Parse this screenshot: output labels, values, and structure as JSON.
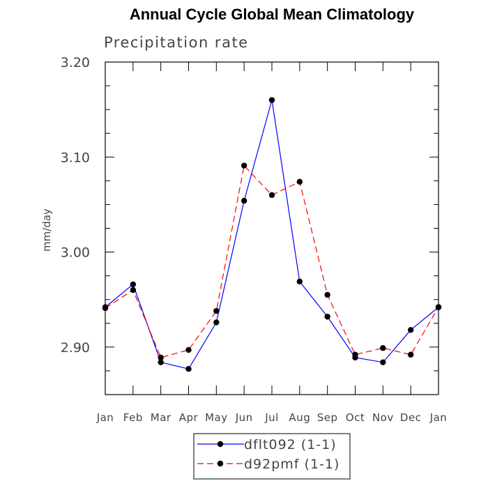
{
  "chart_data": {
    "type": "line",
    "title": "Annual Cycle Global Mean Climatology",
    "subtitle": "Precipitation rate",
    "ylabel": "mm/day",
    "xlabel": "",
    "ylim": [
      2.85,
      3.2
    ],
    "y_ticks": [
      2.9,
      3.0,
      3.1,
      3.2
    ],
    "y_tick_labels": [
      "2.90",
      "3.00",
      "3.10",
      "3.20"
    ],
    "categories": [
      "Jan",
      "Feb",
      "Mar",
      "Apr",
      "May",
      "Jun",
      "Jul",
      "Aug",
      "Sep",
      "Oct",
      "Nov",
      "Dec",
      "Jan"
    ],
    "series": [
      {
        "name": "dflt092 (1-1)",
        "color": "#0000ff",
        "dash": "solid",
        "values": [
          2.942,
          2.966,
          2.884,
          2.877,
          2.926,
          3.054,
          3.16,
          2.969,
          2.932,
          2.889,
          2.884,
          2.918,
          2.942
        ]
      },
      {
        "name": "d92pmf (1-1)",
        "color": "#ff0000",
        "dash": "dashed",
        "values": [
          2.941,
          2.96,
          2.889,
          2.897,
          2.938,
          3.091,
          3.06,
          3.074,
          2.955,
          2.892,
          2.899,
          2.892,
          2.942
        ]
      }
    ],
    "legend": "bottom-center"
  }
}
